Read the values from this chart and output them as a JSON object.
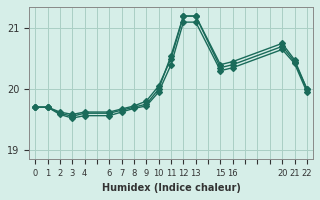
{
  "xlabel": "Humidex (Indice chaleur)",
  "ylabel": "",
  "background_color": "#d6eee8",
  "line_color": "#1a6b5a",
  "grid_color": "#aacfc4",
  "xlim": [
    -0.5,
    22.5
  ],
  "ylim": [
    18.85,
    21.35
  ],
  "yticks": [
    19,
    20,
    21
  ],
  "xticks": [
    0,
    1,
    2,
    3,
    4,
    5,
    6,
    7,
    8,
    9,
    10,
    11,
    12,
    13,
    14,
    15,
    16,
    17,
    18,
    19,
    20,
    21,
    22
  ],
  "xtick_labels": [
    "0",
    "1",
    "2",
    "3",
    "4",
    "",
    "6",
    "7",
    "8",
    "9",
    "10",
    "11",
    "12",
    "13",
    "",
    "15",
    "16",
    "",
    "",
    "",
    "20",
    "21",
    "22"
  ],
  "series1_x": [
    0,
    1,
    2,
    3,
    4,
    6,
    7,
    8,
    9,
    10,
    11,
    12,
    13,
    15,
    16,
    20,
    21,
    22
  ],
  "series1_y": [
    19.7,
    19.7,
    19.6,
    19.55,
    19.6,
    19.6,
    19.65,
    19.7,
    19.75,
    20.0,
    20.55,
    21.2,
    21.2,
    20.35,
    20.4,
    20.7,
    20.45,
    20.0
  ],
  "series2_x": [
    0,
    1,
    2,
    3,
    4,
    6,
    7,
    8,
    9,
    10,
    11,
    12,
    13,
    15,
    16,
    20,
    21,
    22
  ],
  "series2_y": [
    19.7,
    19.7,
    19.62,
    19.58,
    19.62,
    19.62,
    19.67,
    19.72,
    19.8,
    20.05,
    20.5,
    21.2,
    21.2,
    20.4,
    20.45,
    20.75,
    20.48,
    20.0
  ],
  "series3_x": [
    0,
    1,
    2,
    3,
    4,
    6,
    7,
    8,
    9,
    10,
    11,
    12,
    13,
    15,
    16,
    20,
    21,
    22
  ],
  "series3_y": [
    19.7,
    19.7,
    19.58,
    19.52,
    19.56,
    19.56,
    19.62,
    19.68,
    19.72,
    19.95,
    20.4,
    21.1,
    21.1,
    20.3,
    20.35,
    20.65,
    20.42,
    19.95
  ]
}
